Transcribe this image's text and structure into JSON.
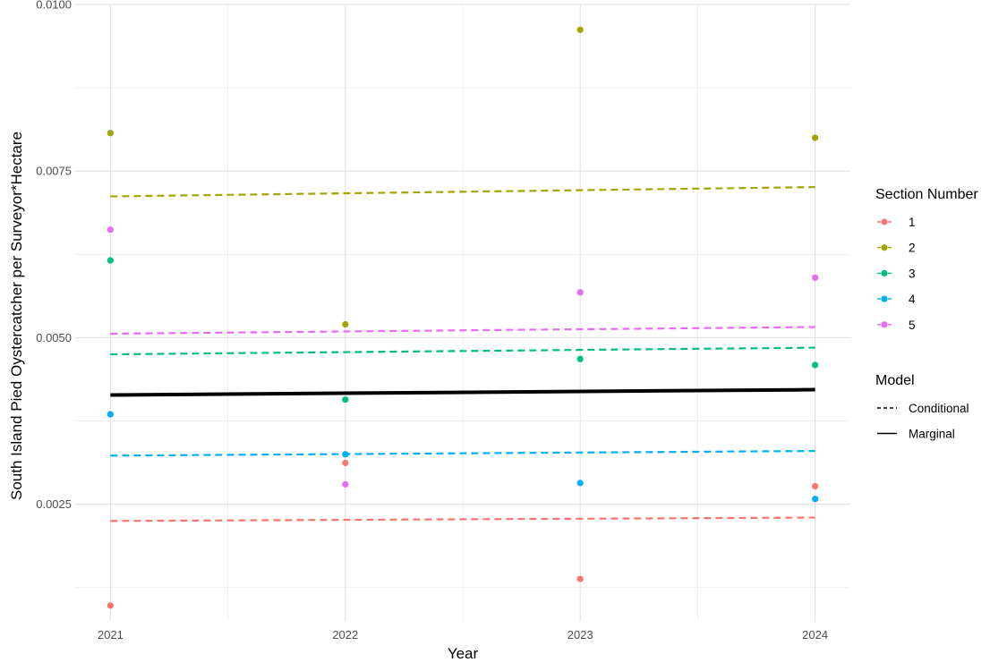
{
  "chart_data": {
    "type": "scatter",
    "title": "",
    "xlabel": "Year",
    "ylabel": "South Island Pied Oystercatcher per Surveyor*Hectare",
    "xlim": [
      2020.85,
      2024.15
    ],
    "ylim": [
      0.00075,
      0.01
    ],
    "x_ticks": [
      2021,
      2022,
      2023,
      2024
    ],
    "x_tick_labels": [
      "2021",
      "2022",
      "2023",
      "2024"
    ],
    "y_ticks": [
      0.0025,
      0.005,
      0.0075,
      0.01
    ],
    "y_tick_labels": [
      "0.0025",
      "0.0050",
      "0.0075",
      "0.0100"
    ],
    "grid": true,
    "legend_position": "right",
    "color_legend": {
      "title": "Section Number",
      "entries": [
        {
          "label": "1",
          "color": "#F8766D"
        },
        {
          "label": "2",
          "color": "#A3A500"
        },
        {
          "label": "3",
          "color": "#00BF7D"
        },
        {
          "label": "4",
          "color": "#00B0F6"
        },
        {
          "label": "5",
          "color": "#E76BF3"
        }
      ]
    },
    "linetype_legend": {
      "title": "Model",
      "entries": [
        {
          "label": "Conditional",
          "linetype": "dashed"
        },
        {
          "label": "Marginal",
          "linetype": "solid"
        }
      ]
    },
    "points": [
      {
        "section": "1",
        "x": [
          2021,
          2022,
          2023,
          2024
        ],
        "y": [
          0.00098,
          0.00312,
          0.00138,
          0.00277
        ]
      },
      {
        "section": "2",
        "x": [
          2021,
          2022,
          2023,
          2024
        ],
        "y": [
          0.00807,
          0.0052,
          0.00962,
          0.008
        ]
      },
      {
        "section": "3",
        "x": [
          2021,
          2022,
          2023,
          2024
        ],
        "y": [
          0.00616,
          0.00407,
          0.00468,
          0.00459
        ]
      },
      {
        "section": "4",
        "x": [
          2021,
          2022,
          2023,
          2024
        ],
        "y": [
          0.00385,
          0.00325,
          0.00282,
          0.00258
        ]
      },
      {
        "section": "5",
        "x": [
          2021,
          2022,
          2023,
          2024
        ],
        "y": [
          0.00662,
          0.0028,
          0.00568,
          0.0059
        ]
      }
    ],
    "conditional_lines": [
      {
        "section": "1",
        "x": [
          2021,
          2024
        ],
        "y": [
          0.00225,
          0.0023
        ]
      },
      {
        "section": "2",
        "x": [
          2021,
          2024
        ],
        "y": [
          0.00712,
          0.00726
        ]
      },
      {
        "section": "3",
        "x": [
          2021,
          2024
        ],
        "y": [
          0.00475,
          0.00485
        ]
      },
      {
        "section": "4",
        "x": [
          2021,
          2024
        ],
        "y": [
          0.00323,
          0.0033
        ]
      },
      {
        "section": "5",
        "x": [
          2021,
          2024
        ],
        "y": [
          0.00506,
          0.00516
        ]
      }
    ],
    "marginal_line": {
      "x": [
        2021,
        2024
      ],
      "y": [
        0.00414,
        0.00422
      ],
      "color": "#000000"
    }
  }
}
